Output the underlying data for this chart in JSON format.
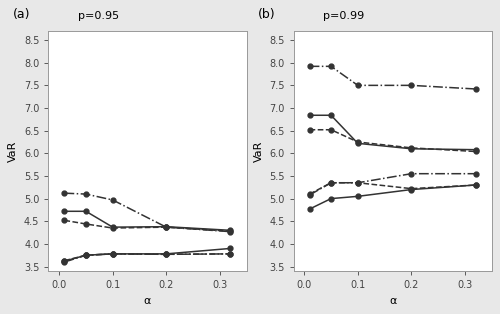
{
  "alpha": [
    0.01,
    0.05,
    0.1,
    0.2,
    0.32
  ],
  "panel_a": {
    "title": "p=0.95",
    "ylabel": "VaR",
    "xlabel": "α",
    "ylim": [
      3.4,
      8.7
    ],
    "yticks": [
      3.5,
      4.0,
      4.5,
      5.0,
      5.5,
      6.0,
      6.5,
      7.0,
      7.5,
      8.0,
      8.5
    ],
    "lines": [
      {
        "y": [
          4.72,
          4.72,
          4.37,
          4.38,
          4.3
        ],
        "style": "solid"
      },
      {
        "y": [
          4.52,
          4.44,
          4.35,
          4.37,
          4.28
        ],
        "style": "dashed"
      },
      {
        "y": [
          5.12,
          5.1,
          4.97,
          4.37,
          4.27
        ],
        "style": "dashdot"
      },
      {
        "y": [
          3.62,
          3.75,
          3.78,
          3.78,
          3.9
        ],
        "style": "solid"
      },
      {
        "y": [
          3.63,
          3.75,
          3.78,
          3.77,
          3.78
        ],
        "style": "dashed"
      },
      {
        "y": [
          3.6,
          3.75,
          3.78,
          3.77,
          3.78
        ],
        "style": "dashdot"
      }
    ]
  },
  "panel_b": {
    "title": "p=0.99",
    "ylabel": "VaR",
    "xlabel": "α",
    "ylim": [
      3.4,
      8.7
    ],
    "yticks": [
      3.5,
      4.0,
      4.5,
      5.0,
      5.5,
      6.0,
      6.5,
      7.0,
      7.5,
      8.0,
      8.5
    ],
    "lines": [
      {
        "y": [
          6.84,
          6.84,
          6.22,
          6.1,
          6.08
        ],
        "style": "solid"
      },
      {
        "y": [
          6.52,
          6.52,
          6.25,
          6.12,
          6.04
        ],
        "style": "dashed"
      },
      {
        "y": [
          7.92,
          7.92,
          7.5,
          7.5,
          7.42
        ],
        "style": "dashdot"
      },
      {
        "y": [
          4.77,
          5.0,
          5.05,
          5.2,
          5.3
        ],
        "style": "solid"
      },
      {
        "y": [
          5.1,
          5.35,
          5.35,
          5.22,
          5.3
        ],
        "style": "dashed"
      },
      {
        "y": [
          5.08,
          5.35,
          5.35,
          5.55,
          5.55
        ],
        "style": "dashdot"
      }
    ]
  },
  "line_color": "#333333",
  "marker": "o",
  "marker_size": 3.5,
  "linewidth": 1.1,
  "bg_color": "#e8e8e8",
  "panel_bg": "#ffffff",
  "label_chars": [
    "(a)",
    "(b)"
  ],
  "xticks": [
    0.0,
    0.1,
    0.2,
    0.3
  ],
  "xlim": [
    -0.02,
    0.35
  ],
  "title_fontsize": 8,
  "label_fontsize": 9,
  "tick_labelsize": 7,
  "axis_labelsize": 8
}
